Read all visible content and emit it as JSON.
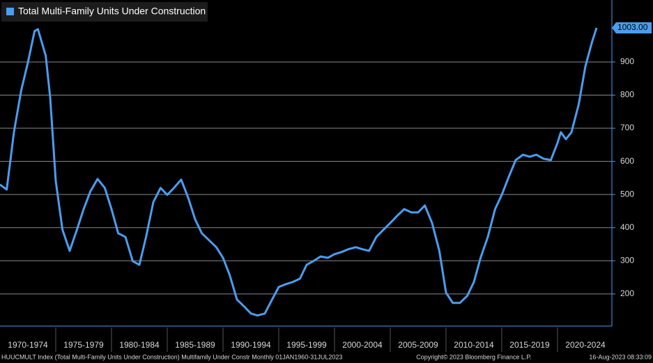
{
  "chart_data": {
    "type": "line",
    "series": [
      {
        "name": "Total Multi-Family Units Under Construction",
        "color": "#4a9ef0",
        "x": [
          1970,
          1970.6,
          1971.25,
          1971.9,
          1972.5,
          1973.1,
          1973.4,
          1974.1,
          1974.5,
          1975,
          1975.6,
          1976.25,
          1976.9,
          1977.5,
          1978.1,
          1978.75,
          1979.4,
          1980,
          1980.6,
          1981.25,
          1981.9,
          1982.5,
          1983.1,
          1983.75,
          1984.4,
          1985,
          1985.6,
          1986.25,
          1986.9,
          1987.5,
          1988.1,
          1988.75,
          1989.4,
          1990,
          1990.6,
          1991.25,
          1991.9,
          1992.5,
          1993.1,
          1993.75,
          1994.4,
          1995,
          1995.6,
          1996.25,
          1996.9,
          1997.5,
          1998.1,
          1998.75,
          1999.4,
          2000,
          2000.6,
          2001.25,
          2001.9,
          2002.5,
          2003.1,
          2003.75,
          2004.4,
          2005,
          2005.6,
          2006.25,
          2006.9,
          2007.5,
          2008.1,
          2008.75,
          2009.4,
          2010,
          2010.6,
          2011.25,
          2011.9,
          2012.5,
          2013.1,
          2013.75,
          2014.4,
          2015,
          2015.6,
          2016.25,
          2016.9,
          2017.5,
          2018.1,
          2018.75,
          2019.4,
          2020,
          2020.3,
          2020.75,
          2021.25,
          2021.9,
          2022.5,
          2023.1,
          2023.5
        ],
        "values": [
          530,
          515,
          688,
          814,
          898,
          993,
          999,
          919,
          793,
          541,
          394,
          330,
          394,
          456,
          509,
          547,
          520,
          456,
          383,
          372,
          299,
          288,
          372,
          477,
          520,
          499,
          520,
          545,
          488,
          425,
          383,
          362,
          341,
          309,
          257,
          183,
          162,
          141,
          135,
          141,
          183,
          221,
          229,
          236,
          246,
          288,
          299,
          313,
          309,
          320,
          326,
          335,
          341,
          335,
          330,
          372,
          394,
          414,
          435,
          456,
          446,
          446,
          467,
          414,
          330,
          204,
          173,
          173,
          194,
          236,
          309,
          372,
          456,
          499,
          551,
          604,
          620,
          614,
          620,
          608,
          604,
          656,
          688,
          667,
          688,
          772,
          887,
          961,
          1003
        ],
        "value_labels": [
          null,
          null,
          null,
          null,
          null,
          null,
          null,
          null,
          null,
          null,
          null,
          null,
          null,
          null,
          null,
          null,
          null,
          null,
          null,
          null,
          null,
          null,
          null,
          null,
          null,
          null,
          null,
          null,
          null,
          null,
          null,
          null,
          null,
          null,
          null,
          null,
          null,
          null,
          null,
          null,
          null,
          null,
          null,
          null,
          null,
          null,
          null,
          null,
          null,
          null,
          null,
          null,
          null,
          null,
          null,
          null,
          null,
          null,
          null,
          null,
          null,
          null,
          null,
          null,
          null,
          null,
          null,
          null,
          null,
          null,
          null,
          null,
          null,
          null,
          null,
          null,
          null,
          null,
          null,
          null,
          null,
          null,
          null,
          null,
          null,
          null,
          null,
          null,
          "1003.00"
        ]
      }
    ],
    "categories": [
      "1970-1974",
      "1975-1979",
      "1980-1984",
      "1985-1989",
      "1990-1994",
      "1995-1999",
      "2000-2004",
      "2005-2009",
      "2010-2014",
      "2015-2019",
      "2020-2024"
    ],
    "xlim": [
      1970,
      2024.875
    ],
    "ylim": [
      103,
      1087
    ],
    "yticks": [
      200,
      300,
      400,
      500,
      600,
      700,
      800,
      900
    ],
    "grid": true,
    "legend": "top-left",
    "footer": {
      "left": "HUUCMULT Index (Total Multi-Family Units Under Construction) Multifamily Under Constr  Monthly 01JAN1960-31JUL2023",
      "center": "Copyright© 2023 Bloomberg Finance L.P.",
      "right": "16-Aug-2023 08:33:09"
    }
  }
}
